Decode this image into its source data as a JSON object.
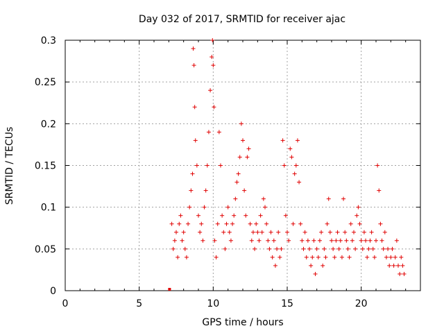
{
  "chart_data": {
    "type": "scatter",
    "title": "Day 032 of 2017, SRMTID for receiver ajac",
    "xlabel": "GPS time / hours",
    "ylabel": "SRMTID / TECUs",
    "xlim": [
      0,
      24
    ],
    "ylim": [
      0,
      0.3
    ],
    "x_ticks": [
      "0",
      "5",
      "10",
      "15",
      "20"
    ],
    "y_ticks": [
      "0",
      "0.05",
      "0.1",
      "0.15",
      "0.2",
      "0.25",
      "0.3"
    ],
    "grid": true,
    "marker": "+",
    "color": "#e00000",
    "zero_marker": {
      "x": 7.05,
      "y": 0.0
    },
    "series": [
      {
        "points": [
          [
            7.2,
            0.08
          ],
          [
            7.3,
            0.05
          ],
          [
            7.4,
            0.06
          ],
          [
            7.5,
            0.07
          ],
          [
            7.6,
            0.04
          ],
          [
            7.7,
            0.08
          ],
          [
            7.8,
            0.09
          ],
          [
            7.9,
            0.06
          ],
          [
            8.0,
            0.07
          ],
          [
            8.1,
            0.05
          ],
          [
            8.2,
            0.04
          ],
          [
            8.3,
            0.08
          ],
          [
            8.4,
            0.1
          ],
          [
            8.5,
            0.12
          ],
          [
            8.6,
            0.14
          ],
          [
            8.65,
            0.29
          ],
          [
            8.7,
            0.27
          ],
          [
            8.75,
            0.22
          ],
          [
            8.8,
            0.18
          ],
          [
            8.9,
            0.15
          ],
          [
            9.0,
            0.09
          ],
          [
            9.1,
            0.07
          ],
          [
            9.2,
            0.08
          ],
          [
            9.3,
            0.06
          ],
          [
            9.4,
            0.1
          ],
          [
            9.5,
            0.12
          ],
          [
            9.6,
            0.15
          ],
          [
            9.7,
            0.19
          ],
          [
            9.8,
            0.24
          ],
          [
            9.9,
            0.28
          ],
          [
            9.95,
            0.3
          ],
          [
            10.0,
            0.27
          ],
          [
            10.05,
            0.22
          ],
          [
            10.1,
            0.06
          ],
          [
            10.2,
            0.04
          ],
          [
            10.3,
            0.08
          ],
          [
            10.4,
            0.19
          ],
          [
            10.5,
            0.15
          ],
          [
            10.6,
            0.09
          ],
          [
            10.7,
            0.07
          ],
          [
            10.8,
            0.05
          ],
          [
            10.9,
            0.08
          ],
          [
            11.0,
            0.1
          ],
          [
            11.1,
            0.07
          ],
          [
            11.2,
            0.06
          ],
          [
            11.3,
            0.08
          ],
          [
            11.4,
            0.09
          ],
          [
            11.5,
            0.11
          ],
          [
            11.6,
            0.13
          ],
          [
            11.7,
            0.14
          ],
          [
            11.8,
            0.16
          ],
          [
            11.9,
            0.2
          ],
          [
            12.0,
            0.18
          ],
          [
            12.1,
            0.12
          ],
          [
            12.2,
            0.09
          ],
          [
            12.3,
            0.16
          ],
          [
            12.4,
            0.17
          ],
          [
            12.5,
            0.08
          ],
          [
            12.6,
            0.06
          ],
          [
            12.7,
            0.07
          ],
          [
            12.8,
            0.05
          ],
          [
            12.9,
            0.08
          ],
          [
            13.0,
            0.07
          ],
          [
            13.1,
            0.06
          ],
          [
            13.2,
            0.09
          ],
          [
            13.3,
            0.07
          ],
          [
            13.4,
            0.11
          ],
          [
            13.5,
            0.1
          ],
          [
            13.6,
            0.08
          ],
          [
            13.7,
            0.06
          ],
          [
            13.8,
            0.05
          ],
          [
            13.9,
            0.07
          ],
          [
            14.0,
            0.04
          ],
          [
            14.1,
            0.06
          ],
          [
            14.2,
            0.03
          ],
          [
            14.3,
            0.05
          ],
          [
            14.4,
            0.07
          ],
          [
            14.5,
            0.04
          ],
          [
            14.6,
            0.05
          ],
          [
            14.7,
            0.18
          ],
          [
            14.8,
            0.15
          ],
          [
            14.9,
            0.09
          ],
          [
            15.0,
            0.07
          ],
          [
            15.1,
            0.06
          ],
          [
            15.2,
            0.17
          ],
          [
            15.3,
            0.16
          ],
          [
            15.4,
            0.08
          ],
          [
            15.5,
            0.14
          ],
          [
            15.6,
            0.15
          ],
          [
            15.7,
            0.18
          ],
          [
            15.8,
            0.13
          ],
          [
            15.9,
            0.08
          ],
          [
            16.0,
            0.06
          ],
          [
            16.1,
            0.05
          ],
          [
            16.2,
            0.07
          ],
          [
            16.3,
            0.04
          ],
          [
            16.4,
            0.06
          ],
          [
            16.5,
            0.05
          ],
          [
            16.6,
            0.03
          ],
          [
            16.7,
            0.04
          ],
          [
            16.8,
            0.06
          ],
          [
            16.9,
            0.02
          ],
          [
            17.0,
            0.05
          ],
          [
            17.1,
            0.04
          ],
          [
            17.2,
            0.06
          ],
          [
            17.3,
            0.07
          ],
          [
            17.4,
            0.03
          ],
          [
            17.5,
            0.05
          ],
          [
            17.6,
            0.04
          ],
          [
            17.7,
            0.08
          ],
          [
            17.8,
            0.11
          ],
          [
            17.9,
            0.07
          ],
          [
            18.0,
            0.06
          ],
          [
            18.1,
            0.05
          ],
          [
            18.2,
            0.04
          ],
          [
            18.3,
            0.06
          ],
          [
            18.4,
            0.07
          ],
          [
            18.5,
            0.05
          ],
          [
            18.6,
            0.06
          ],
          [
            18.7,
            0.04
          ],
          [
            18.8,
            0.11
          ],
          [
            18.9,
            0.07
          ],
          [
            19.0,
            0.06
          ],
          [
            19.1,
            0.05
          ],
          [
            19.2,
            0.04
          ],
          [
            19.3,
            0.08
          ],
          [
            19.4,
            0.06
          ],
          [
            19.5,
            0.07
          ],
          [
            19.6,
            0.05
          ],
          [
            19.7,
            0.09
          ],
          [
            19.8,
            0.1
          ],
          [
            19.9,
            0.08
          ],
          [
            20.0,
            0.06
          ],
          [
            20.1,
            0.05
          ],
          [
            20.2,
            0.07
          ],
          [
            20.3,
            0.06
          ],
          [
            20.4,
            0.04
          ],
          [
            20.5,
            0.05
          ],
          [
            20.6,
            0.06
          ],
          [
            20.7,
            0.07
          ],
          [
            20.8,
            0.05
          ],
          [
            20.9,
            0.04
          ],
          [
            21.0,
            0.06
          ],
          [
            21.1,
            0.15
          ],
          [
            21.2,
            0.12
          ],
          [
            21.3,
            0.08
          ],
          [
            21.4,
            0.06
          ],
          [
            21.5,
            0.05
          ],
          [
            21.6,
            0.07
          ],
          [
            21.7,
            0.04
          ],
          [
            21.8,
            0.05
          ],
          [
            21.9,
            0.03
          ],
          [
            22.0,
            0.04
          ],
          [
            22.1,
            0.05
          ],
          [
            22.2,
            0.03
          ],
          [
            22.3,
            0.04
          ],
          [
            22.4,
            0.06
          ],
          [
            22.5,
            0.03
          ],
          [
            22.6,
            0.02
          ],
          [
            22.7,
            0.04
          ],
          [
            22.8,
            0.03
          ],
          [
            22.9,
            0.02
          ]
        ]
      }
    ]
  }
}
